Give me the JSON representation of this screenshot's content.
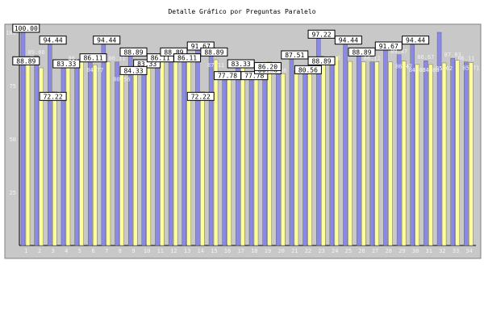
{
  "chart_data": {
    "type": "bar",
    "title": "Detalle Gráfico por Preguntas Paralelo",
    "xlabel": "",
    "ylabel": "",
    "ylim": [
      0,
      100
    ],
    "yticks": [
      25,
      50,
      75,
      100
    ],
    "grid": false,
    "legend": "none",
    "categories": [
      "1",
      "2",
      "3",
      "4",
      "5",
      "6",
      "7",
      "8",
      "9",
      "10",
      "11",
      "12",
      "13",
      "14",
      "15",
      "16",
      "17",
      "18",
      "19",
      "20",
      "21",
      "22",
      "23",
      "24",
      "25",
      "26",
      "27",
      "28",
      "29",
      "30",
      "31",
      "32",
      "33",
      "34"
    ],
    "series": [
      {
        "color": "#8a8ae6",
        "values": [
          100.0,
          89.06,
          94.44,
          83.33,
          86.11,
          86.11,
          94.44,
          86.11,
          88.89,
          83.33,
          86.11,
          88.89,
          86.11,
          91.67,
          88.89,
          77.78,
          83.33,
          77.78,
          80.56,
          80.56,
          87.51,
          80.56,
          97.22,
          86.42,
          94.44,
          88.89,
          86.11,
          91.67,
          89.47,
          94.44,
          86.67,
          100.0,
          87.83,
          86.11
        ],
        "labels": [
          "100.00",
          "89.06",
          "94.44",
          "83.33",
          "86.11",
          "86.11",
          "94.44",
          "86.11",
          "88.89",
          "83.33",
          "86.11",
          "88.89",
          "86.11",
          "91.67",
          "88.89",
          "77.78",
          "83.33",
          "77.78",
          "80.56",
          "80.56",
          "87.51",
          "80.56",
          "97.22",
          "86.42",
          "94.44",
          "88.89",
          "86.11",
          "91.67",
          "89.47",
          "94.44",
          "86.67",
          "",
          "87.83",
          "86.11"
        ]
      },
      {
        "color": "#ffff99",
        "values": [
          88.89,
          83.33,
          72.22,
          83.33,
          86.67,
          84.77,
          86.11,
          80.56,
          84.33,
          83.33,
          86.11,
          86.11,
          86.11,
          72.22,
          87.11,
          77.78,
          84.11,
          77.78,
          86.2,
          80.56,
          82.11,
          80.56,
          88.89,
          88.89,
          86.33,
          86.11,
          86.11,
          86.11,
          86.47,
          84.88,
          84.88,
          85.62,
          86.83,
          85.71
        ],
        "labels": [
          "88.89",
          "",
          "72.22",
          "",
          "",
          "84.77",
          "",
          "80.56",
          "84.33",
          "",
          "",
          "",
          "",
          "72.22",
          "87.11",
          "",
          "",
          "",
          "86.20",
          "",
          "",
          "",
          "88.89",
          "",
          "",
          "",
          "",
          "",
          "86.47",
          "84.88",
          "84.88",
          "85.62",
          "",
          "85.71"
        ]
      }
    ]
  }
}
